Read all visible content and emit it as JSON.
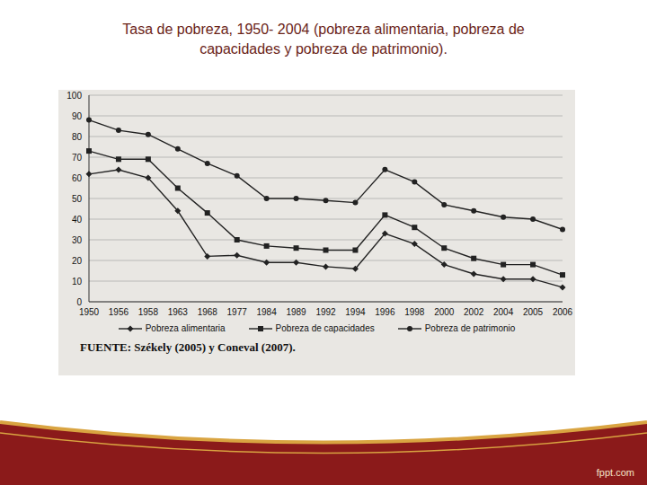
{
  "chart_data": {
    "type": "line",
    "title": "Tasa de pobreza, 1950- 2004 (pobreza alimentaria, pobreza de capacidades y pobreza de patrimonio).",
    "source": "FUENTE: Székely (2005) y Coneval (2007).",
    "watermark": "fppt.com",
    "categories": [
      "1950",
      "1956",
      "1958",
      "1963",
      "1968",
      "1977",
      "1984",
      "1989",
      "1992",
      "1994",
      "1996",
      "1998",
      "2000",
      "2002",
      "2004",
      "2005",
      "2006"
    ],
    "series": [
      {
        "name": "Pobreza alimentaria",
        "color": "#222222",
        "marker": "diamond",
        "values": [
          61.8,
          63.9,
          60,
          44,
          22,
          22.5,
          19,
          19,
          17,
          16,
          33,
          28,
          18,
          13.5,
          11,
          11,
          7
        ]
      },
      {
        "name": "Pobreza de capacidades",
        "color": "#222222",
        "marker": "square",
        "values": [
          73,
          69,
          69,
          55,
          43,
          30,
          27,
          26,
          25,
          25,
          42,
          36,
          26,
          21,
          18,
          18,
          13
        ]
      },
      {
        "name": "Pobreza de patrimonio",
        "color": "#222222",
        "marker": "circle",
        "values": [
          88,
          83,
          81,
          74,
          67,
          61,
          50,
          50,
          49,
          48,
          64,
          58,
          47,
          44,
          41,
          40,
          35
        ]
      }
    ],
    "ylim": [
      0,
      100
    ],
    "yticks": [
      0,
      10,
      20,
      30,
      40,
      50,
      60,
      70,
      80,
      90,
      100
    ],
    "grid": true,
    "legend": "bottom"
  }
}
